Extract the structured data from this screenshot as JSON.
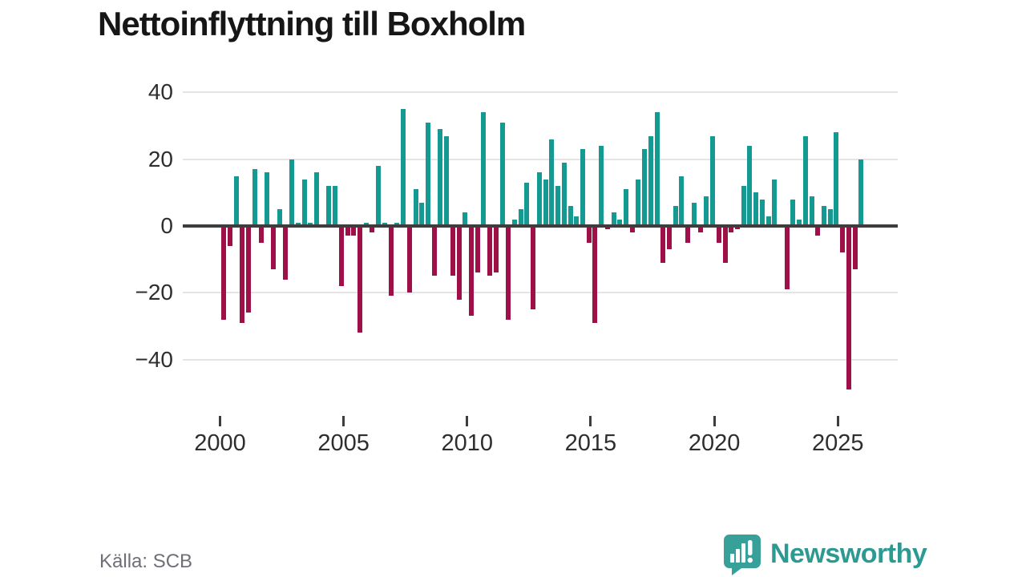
{
  "title": "Nettoinflyttning till Boxholm",
  "source": "Källa: SCB",
  "brand": {
    "name": "Newsworthy",
    "color": "#2d9a92"
  },
  "chart_data": {
    "type": "bar",
    "title": "Nettoinflyttning till Boxholm",
    "frequency": "quarterly",
    "period_start": "2000 Q1",
    "period_end": "2025 Q4",
    "x_tick_labels": [
      "2000",
      "2005",
      "2010",
      "2015",
      "2020",
      "2025"
    ],
    "x_tick_years": [
      2000,
      2005,
      2010,
      2015,
      2020,
      2025
    ],
    "y_ticks": [
      40,
      20,
      0,
      -20,
      -40
    ],
    "ylim": [
      -52,
      43
    ],
    "grid": true,
    "legend": false,
    "positive_color": "#149a92",
    "negative_color": "#9e1148",
    "values": [
      -28,
      -6,
      15,
      -29,
      -26,
      17,
      -5,
      16,
      -13,
      5,
      -16,
      20,
      1,
      14,
      1,
      16,
      0,
      12,
      12,
      -18,
      -3,
      -3,
      -32,
      1,
      -2,
      18,
      1,
      -21,
      1,
      35,
      -20,
      11,
      7,
      31,
      -15,
      29,
      27,
      -15,
      -22,
      4,
      -27,
      -14,
      34,
      -15,
      -14,
      31,
      -28,
      2,
      5,
      13,
      -25,
      16,
      14,
      26,
      12,
      19,
      6,
      3,
      23,
      -5,
      -29,
      24,
      -1,
      4,
      2,
      11,
      -2,
      14,
      23,
      27,
      34,
      -11,
      -7,
      6,
      15,
      -5,
      7,
      -2,
      9,
      27,
      -5,
      -11,
      -2,
      -1,
      12,
      24,
      10,
      8,
      3,
      14,
      0,
      -19,
      8,
      2,
      27,
      9,
      -3,
      6,
      5,
      28,
      -8,
      -49,
      -13,
      20
    ]
  }
}
